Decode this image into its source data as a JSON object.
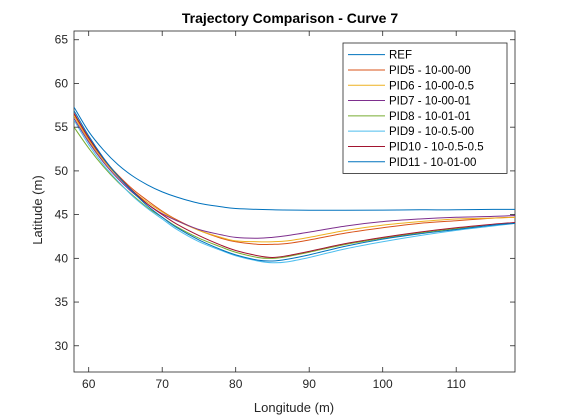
{
  "chart_data": {
    "type": "line",
    "title": "Trajectory Comparison - Curve 7",
    "xlabel": "Longitude (m)",
    "ylabel": "Latitude (m)",
    "xlim": [
      58,
      118
    ],
    "ylim": [
      27,
      66
    ],
    "xticks": [
      60,
      70,
      80,
      90,
      100,
      110
    ],
    "yticks": [
      30,
      35,
      40,
      45,
      50,
      55,
      60,
      65
    ],
    "grid": false,
    "legend_position": "top-right",
    "series": [
      {
        "name": "REF",
        "color": "#0072BD",
        "x": [
          58,
          60,
          62,
          64,
          66,
          68,
          70,
          72,
          75,
          78,
          80,
          85,
          90,
          95,
          100,
          105,
          110,
          115,
          118
        ],
        "y": [
          57.3,
          54.5,
          52.4,
          50.7,
          49.4,
          48.4,
          47.6,
          47.0,
          46.3,
          45.9,
          45.7,
          45.55,
          45.5,
          45.5,
          45.52,
          45.55,
          45.55,
          45.6,
          45.6
        ]
      },
      {
        "name": "PID5 - 10-00-00",
        "color": "#D95319",
        "x": [
          58,
          60,
          62,
          64,
          66,
          68,
          70,
          72,
          75,
          78,
          80,
          83,
          85,
          87,
          90,
          95,
          100,
          105,
          110,
          115,
          118
        ],
        "y": [
          56.5,
          53.7,
          51.4,
          49.5,
          47.9,
          46.6,
          45.4,
          44.4,
          43.2,
          42.3,
          41.9,
          41.6,
          41.6,
          41.7,
          42.1,
          42.9,
          43.5,
          44.0,
          44.3,
          44.6,
          44.7
        ]
      },
      {
        "name": "PID6 - 10-00-0.5",
        "color": "#EDB120",
        "x": [
          58,
          60,
          62,
          64,
          66,
          68,
          70,
          72,
          75,
          78,
          80,
          83,
          85,
          87,
          90,
          95,
          100,
          105,
          110,
          115,
          118
        ],
        "y": [
          56.3,
          53.5,
          51.2,
          49.3,
          47.7,
          46.4,
          45.3,
          44.3,
          43.2,
          42.4,
          42.0,
          41.9,
          41.9,
          42.0,
          42.4,
          43.2,
          43.8,
          44.2,
          44.5,
          44.6,
          44.7
        ]
      },
      {
        "name": "PID7 - 10-00-01",
        "color": "#7E2F8E",
        "x": [
          58,
          60,
          62,
          64,
          66,
          68,
          70,
          72,
          75,
          78,
          80,
          83,
          85,
          87,
          90,
          95,
          100,
          105,
          110,
          115,
          118
        ],
        "y": [
          56.0,
          53.3,
          51.0,
          49.1,
          47.5,
          46.2,
          45.1,
          44.3,
          43.3,
          42.7,
          42.4,
          42.3,
          42.4,
          42.6,
          43.0,
          43.7,
          44.2,
          44.5,
          44.7,
          44.8,
          44.9
        ]
      },
      {
        "name": "PID8 - 10-01-01",
        "color": "#77AC30",
        "x": [
          58,
          60,
          62,
          64,
          66,
          68,
          70,
          72,
          75,
          78,
          80,
          83,
          85,
          87,
          90,
          95,
          100,
          105,
          110,
          115,
          118
        ],
        "y": [
          55.0,
          52.6,
          50.5,
          48.7,
          47.2,
          45.8,
          44.7,
          43.6,
          42.3,
          41.3,
          40.7,
          40.1,
          40.0,
          40.2,
          40.7,
          41.6,
          42.3,
          42.9,
          43.4,
          43.8,
          44.0
        ]
      },
      {
        "name": "PID9 - 10-0.5-00",
        "color": "#4DBEEE",
        "x": [
          58,
          60,
          62,
          64,
          66,
          68,
          70,
          72,
          75,
          78,
          80,
          83,
          85,
          87,
          90,
          95,
          100,
          105,
          110,
          115,
          118
        ],
        "y": [
          55.8,
          53.0,
          50.7,
          48.8,
          47.1,
          45.7,
          44.5,
          43.3,
          41.9,
          40.9,
          40.3,
          39.7,
          39.5,
          39.6,
          40.1,
          41.1,
          41.9,
          42.6,
          43.2,
          43.7,
          44.0
        ]
      },
      {
        "name": "PID10 - 10-0.5-0.5",
        "color": "#A2142F",
        "x": [
          58,
          60,
          62,
          64,
          66,
          68,
          70,
          72,
          75,
          78,
          80,
          83,
          85,
          87,
          90,
          95,
          100,
          105,
          110,
          115,
          118
        ],
        "y": [
          56.6,
          53.8,
          51.4,
          49.4,
          47.7,
          46.2,
          45.0,
          43.9,
          42.6,
          41.5,
          40.9,
          40.3,
          40.1,
          40.3,
          40.8,
          41.7,
          42.4,
          43.0,
          43.5,
          43.9,
          44.1
        ]
      },
      {
        "name": "PID11 - 10-01-00",
        "color": "#0072BD",
        "x": [
          58,
          60,
          62,
          64,
          66,
          68,
          70,
          72,
          75,
          78,
          80,
          83,
          85,
          87,
          90,
          95,
          100,
          105,
          110,
          115,
          118
        ],
        "y": [
          56.9,
          54.0,
          51.5,
          49.4,
          47.6,
          46.0,
          44.7,
          43.5,
          42.1,
          41.0,
          40.4,
          39.8,
          39.7,
          39.9,
          40.4,
          41.4,
          42.2,
          42.8,
          43.3,
          43.8,
          44.0
        ]
      }
    ]
  }
}
